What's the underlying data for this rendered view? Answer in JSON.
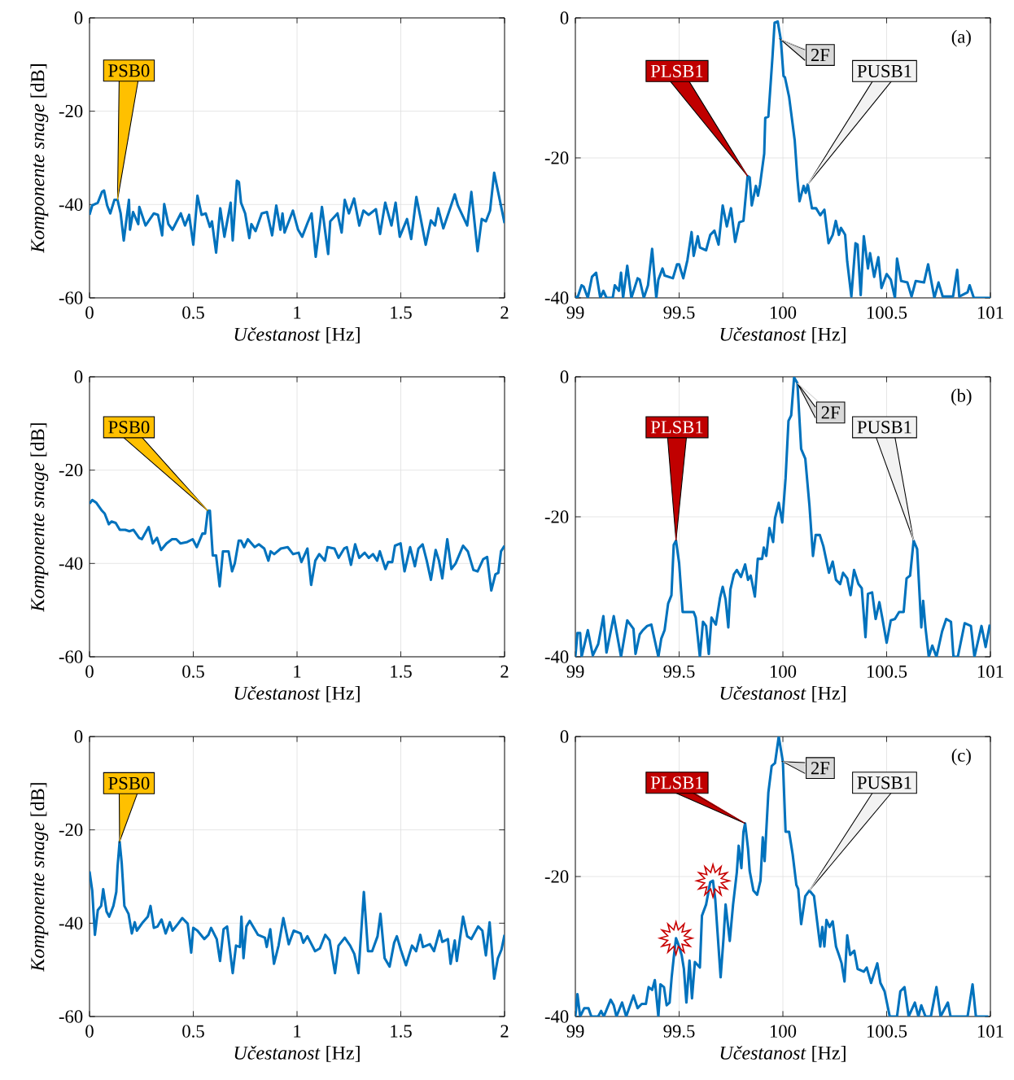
{
  "chart_data": [
    {
      "type": "line",
      "xlabel": "*Učestanost* [Hz]",
      "ylabel": "*Komponente snage* [dB]",
      "grid": true,
      "xlim": [
        0,
        2
      ],
      "ylim": [
        -60,
        0
      ],
      "xticks": [
        0,
        0.5,
        1,
        1.5,
        2
      ],
      "yticks": [
        -60,
        -40,
        -20,
        0
      ],
      "x": [
        0,
        0.013,
        0.04,
        0.06,
        0.07,
        0.085,
        0.1,
        0.12,
        0.135,
        0.15,
        0.165,
        0.19,
        0.195,
        0.21,
        0.235,
        0.24,
        0.27,
        0.31,
        0.33,
        0.35,
        0.36,
        0.38,
        0.4,
        0.44,
        0.46,
        0.48,
        0.5,
        0.52,
        0.54,
        0.56,
        0.58,
        0.59,
        0.61,
        0.63,
        0.65,
        0.68,
        0.69,
        0.71,
        0.72,
        0.73,
        0.75,
        0.77,
        0.78,
        0.8,
        0.83,
        0.855,
        0.88,
        0.9,
        0.92,
        0.93,
        0.94,
        0.98,
        1.005,
        1.025,
        1.05,
        1.07,
        1.09,
        1.11,
        1.12,
        1.15,
        1.16,
        1.195,
        1.215,
        1.23,
        1.25,
        1.275,
        1.3,
        1.32,
        1.345,
        1.38,
        1.4,
        1.425,
        1.455,
        1.475,
        1.495,
        1.53,
        1.55,
        1.575,
        1.595,
        1.62,
        1.645,
        1.665,
        1.68,
        1.705,
        1.74,
        1.76,
        1.775,
        1.82,
        1.84,
        1.87,
        1.89,
        1.91,
        1.93,
        1.95,
        2
      ],
      "series": [
        {
          "color": "#0072bd",
          "values": [
            -42.2,
            -40.2,
            -39.6,
            -37.3,
            -37,
            -40.2,
            -41.9,
            -39,
            -39,
            -41.9,
            -47.7,
            -39,
            -45.4,
            -41.6,
            -44.2,
            -40.5,
            -44.5,
            -41.9,
            -42.2,
            -46.6,
            -39.9,
            -44.2,
            -45.4,
            -41.9,
            -44.5,
            -42.2,
            -48.6,
            -38.1,
            -42.2,
            -41.9,
            -44.8,
            -43.6,
            -50.3,
            -40.8,
            -46.9,
            -39.6,
            -47.7,
            -34.9,
            -35.2,
            -39.6,
            -41.9,
            -47.2,
            -44.2,
            -45.7,
            -41.9,
            -41.6,
            -46.6,
            -40.2,
            -45.4,
            -41.9,
            -46,
            -41.3,
            -45.4,
            -46.9,
            -44,
            -41.9,
            -51.2,
            -44.2,
            -40.5,
            -50.6,
            -43.6,
            -41.9,
            -46,
            -39,
            -41.9,
            -38.7,
            -44.5,
            -41.3,
            -42.2,
            -41,
            -46.3,
            -39.6,
            -44.5,
            -39.6,
            -46.9,
            -43.1,
            -47.4,
            -38.4,
            -42.8,
            -48.6,
            -43.4,
            -44.5,
            -40.8,
            -45.1,
            -40.5,
            -37.8,
            -40.2,
            -44.5,
            -37.3,
            -50,
            -43.1,
            -43.6,
            -41.3,
            -33.2,
            -44
          ]
        }
      ],
      "annotations": [
        {
          "text": "PSB0",
          "x": 0.135,
          "y": -39
        }
      ]
    },
    {
      "type": "line",
      "xlabel": "*Učestanost* [Hz]",
      "grid": true,
      "xlim": [
        99,
        101
      ],
      "ylim": [
        -40,
        0
      ],
      "xticks": [
        99,
        99.5,
        100,
        100.5,
        101
      ],
      "yticks": [
        -40,
        -20,
        0
      ],
      "x": [
        99,
        99.01,
        99.03,
        99.04,
        99.06,
        99.08,
        99.1,
        99.12,
        99.135,
        99.15,
        99.18,
        99.19,
        99.21,
        99.22,
        99.23,
        99.25,
        99.27,
        99.3,
        99.31,
        99.33,
        99.35,
        99.37,
        99.39,
        99.4,
        99.42,
        99.43,
        99.47,
        99.49,
        99.5,
        99.52,
        99.54,
        99.56,
        99.57,
        99.59,
        99.6,
        99.63,
        99.65,
        99.67,
        99.69,
        99.71,
        99.73,
        99.75,
        99.77,
        99.79,
        99.81,
        99.83,
        99.84,
        99.85,
        99.87,
        99.88,
        99.89,
        99.91,
        99.915,
        99.93,
        99.95,
        99.96,
        99.975,
        99.99,
        100.003,
        100.01,
        100.03,
        100.057,
        100.07,
        100.08,
        100.1,
        100.11,
        100.12,
        100.14,
        100.16,
        100.18,
        100.2,
        100.22,
        100.24,
        100.255,
        100.27,
        100.28,
        100.3,
        100.31,
        100.33,
        100.35,
        100.36,
        100.375,
        100.39,
        100.41,
        100.42,
        100.44,
        100.46,
        100.475,
        100.5,
        100.52,
        100.54,
        100.55,
        100.57,
        100.6,
        100.62,
        100.64,
        100.68,
        100.7,
        100.73,
        100.75,
        100.77,
        100.8,
        100.82,
        100.84,
        100.85,
        100.89,
        100.9,
        100.92,
        101
      ],
      "series": [
        {
          "color": "#0072bd",
          "values": [
            -39.8,
            -40,
            -38.2,
            -38.4,
            -40,
            -37,
            -36.4,
            -40,
            -39,
            -40,
            -40,
            -38.2,
            -39,
            -36.4,
            -40,
            -35.4,
            -40,
            -37.2,
            -37.4,
            -40,
            -38.2,
            -33,
            -40,
            -37.4,
            -35.8,
            -36.8,
            -37.2,
            -35.2,
            -35.2,
            -37.2,
            -34.6,
            -30.6,
            -34,
            -31.2,
            -32.8,
            -33.2,
            -31,
            -30.4,
            -32.4,
            -26.8,
            -29.8,
            -27.2,
            -32,
            -29.2,
            -29,
            -22.6,
            -22.8,
            -26.8,
            -24,
            -25.4,
            -23.8,
            -19.4,
            -14.3,
            -14.1,
            -5.5,
            -0.7,
            -0.5,
            -3.1,
            -8.3,
            -8.5,
            -11.3,
            -17.5,
            -23,
            -26.2,
            -24,
            -25,
            -23.8,
            -27.2,
            -27.2,
            -28.2,
            -27.4,
            -32.2,
            -31,
            -29,
            -31,
            -30,
            -31,
            -34.8,
            -39.8,
            -32.2,
            -32.4,
            -39.6,
            -31.2,
            -35.8,
            -33.6,
            -37,
            -34.2,
            -38.6,
            -36.6,
            -37.4,
            -40,
            -34.4,
            -37.6,
            -37.8,
            -39.8,
            -37.6,
            -37.8,
            -35.2,
            -40,
            -37.8,
            -39.8,
            -39.8,
            -39.8,
            -36,
            -39.8,
            -39.2,
            -38.2,
            -40,
            -40
          ]
        }
      ],
      "annotations": [
        {
          "text": "PLSB1",
          "x": 99.83,
          "y": -22.6
        },
        {
          "text": "2F",
          "x": 99.99,
          "y": -3.1
        },
        {
          "text": "PUSB1",
          "x": 100.12,
          "y": -23.8
        },
        "(a)"
      ]
    },
    {
      "type": "line",
      "xlabel": "*Učestanost* [Hz]",
      "ylabel": "*Komponente snage* [dB]",
      "grid": true,
      "xlim": [
        0,
        2
      ],
      "ylim": [
        -60,
        0
      ],
      "xticks": [
        0,
        0.5,
        1,
        1.5,
        2
      ],
      "yticks": [
        -60,
        -40,
        -20,
        0
      ],
      "x": [
        0,
        0.013,
        0.033,
        0.06,
        0.073,
        0.093,
        0.106,
        0.126,
        0.146,
        0.172,
        0.192,
        0.212,
        0.239,
        0.252,
        0.285,
        0.305,
        0.325,
        0.345,
        0.371,
        0.398,
        0.418,
        0.438,
        0.471,
        0.497,
        0.517,
        0.544,
        0.557,
        0.57,
        0.58,
        0.594,
        0.61,
        0.627,
        0.643,
        0.67,
        0.687,
        0.7,
        0.719,
        0.73,
        0.745,
        0.763,
        0.796,
        0.816,
        0.842,
        0.862,
        0.873,
        0.89,
        0.922,
        0.955,
        0.981,
        1.008,
        1.021,
        1.041,
        1.05,
        1.068,
        1.088,
        1.107,
        1.134,
        1.147,
        1.18,
        1.2,
        1.227,
        1.24,
        1.26,
        1.28,
        1.3,
        1.326,
        1.346,
        1.366,
        1.386,
        1.399,
        1.426,
        1.439,
        1.459,
        1.472,
        1.499,
        1.518,
        1.545,
        1.568,
        1.585,
        1.605,
        1.625,
        1.645,
        1.668,
        1.684,
        1.7,
        1.724,
        1.744,
        1.764,
        1.8,
        1.823,
        1.85,
        1.87,
        1.897,
        1.916,
        1.936,
        1.956,
        1.97,
        1.983,
        2
      ],
      "series": [
        {
          "color": "#0072bd",
          "values": [
            -27.2,
            -26.4,
            -27,
            -28.7,
            -29.3,
            -31.6,
            -31,
            -31.3,
            -32.8,
            -32.8,
            -33.1,
            -32.8,
            -34.5,
            -34.8,
            -32.2,
            -35.7,
            -34.5,
            -37.1,
            -35.7,
            -34.8,
            -34.8,
            -35.7,
            -35.4,
            -34.8,
            -36.5,
            -33.6,
            -33.6,
            -28.7,
            -28.7,
            -38.3,
            -38.3,
            -44.9,
            -37.4,
            -37.4,
            -41.7,
            -40,
            -35.1,
            -35.1,
            -36.5,
            -34.8,
            -36.5,
            -35.9,
            -36.8,
            -39.4,
            -37.4,
            -38,
            -36.8,
            -36.5,
            -38,
            -37.7,
            -39.7,
            -37.7,
            -36.8,
            -44.6,
            -39.4,
            -38,
            -39.4,
            -36.5,
            -36.8,
            -38.8,
            -36.8,
            -36.5,
            -40.3,
            -35.9,
            -38.8,
            -37.7,
            -38.8,
            -38,
            -39.4,
            -37.4,
            -41.2,
            -39.7,
            -39.7,
            -36.2,
            -35.7,
            -41.7,
            -36.5,
            -40.6,
            -36.8,
            -35.9,
            -39.4,
            -43.5,
            -37.1,
            -39.4,
            -43.2,
            -34.8,
            -41.2,
            -40,
            -36.2,
            -37.4,
            -41.4,
            -41.7,
            -39.1,
            -38.6,
            -45.8,
            -42.3,
            -42,
            -37.4,
            -36.2
          ]
        }
      ],
      "annotations": [
        {
          "text": "PSB0",
          "x": 0.57,
          "y": -28.7
        }
      ]
    },
    {
      "type": "line",
      "xlabel": "*Učestanost* [Hz]",
      "grid": true,
      "xlim": [
        99,
        101
      ],
      "ylim": [
        -40,
        0
      ],
      "xticks": [
        99,
        99.5,
        100,
        100.5,
        101
      ],
      "yticks": [
        -40,
        -20,
        0
      ],
      "x": [
        99,
        99.01,
        99.023,
        99.03,
        99.043,
        99.06,
        99.084,
        99.11,
        99.135,
        99.15,
        99.185,
        99.22,
        99.25,
        99.28,
        99.29,
        99.31,
        99.325,
        99.346,
        99.366,
        99.4,
        99.414,
        99.43,
        99.447,
        99.463,
        99.474,
        99.485,
        99.5,
        99.517,
        99.542,
        99.57,
        99.58,
        99.6,
        99.615,
        99.63,
        99.643,
        99.656,
        99.677,
        99.697,
        99.71,
        99.724,
        99.737,
        99.747,
        99.764,
        99.778,
        99.798,
        99.818,
        99.832,
        99.845,
        99.865,
        99.879,
        99.9,
        99.908,
        99.92,
        99.935,
        99.953,
        99.962,
        99.98,
        99.997,
        100.013,
        100.027,
        100.04,
        100.054,
        100.07,
        100.088,
        100.108,
        100.128,
        100.145,
        100.158,
        100.178,
        100.195,
        100.222,
        100.24,
        100.256,
        100.276,
        100.29,
        100.31,
        100.326,
        100.343,
        100.364,
        100.38,
        100.398,
        100.41,
        100.43,
        100.447,
        100.465,
        100.48,
        100.5,
        100.52,
        100.54,
        100.56,
        100.582,
        100.596,
        100.613,
        100.63,
        100.647,
        100.667,
        100.676,
        100.687,
        100.703,
        100.72,
        100.74,
        100.767,
        100.787,
        100.81,
        100.822,
        100.843,
        100.876,
        100.906,
        100.923,
        100.957,
        100.977,
        100.997
      ],
      "series": [
        {
          "color": "#0072bd",
          "values": [
            -40,
            -36.6,
            -36.6,
            -40,
            -38.4,
            -36.2,
            -39.8,
            -38.2,
            -34.2,
            -39.4,
            -34.2,
            -40,
            -34.8,
            -36,
            -39.6,
            -36.8,
            -36.2,
            -35.6,
            -35.4,
            -40,
            -37.4,
            -36.2,
            -32.4,
            -31.2,
            -24,
            -23.4,
            -26.6,
            -33.6,
            -33.6,
            -33.6,
            -34.4,
            -40,
            -35,
            -35.6,
            -39.6,
            -34.4,
            -35.4,
            -31.6,
            -30,
            -31.8,
            -35.8,
            -30.4,
            -28.2,
            -27.6,
            -28.6,
            -26.8,
            -29,
            -28.4,
            -31.4,
            -26,
            -26,
            -24.4,
            -25.6,
            -21.6,
            -23.6,
            -20.2,
            -18,
            -20.8,
            -14.5,
            -6.3,
            -5.5,
            -0.1,
            -0.9,
            -10.3,
            -11.7,
            -18.4,
            -25.6,
            -22.6,
            -22.6,
            -24.2,
            -28,
            -26.4,
            -29,
            -29.6,
            -28,
            -28.8,
            -31.2,
            -27.6,
            -29.6,
            -30.2,
            -37.2,
            -31,
            -30.8,
            -34.6,
            -32.2,
            -34.6,
            -38,
            -34.8,
            -34.6,
            -33.6,
            -33.6,
            -28.8,
            -28.4,
            -23.4,
            -24.6,
            -35.8,
            -32,
            -35.8,
            -40,
            -38.4,
            -40,
            -36.4,
            -34.6,
            -35,
            -40,
            -40,
            -35.2,
            -35.6,
            -40,
            -35.6,
            -38.6,
            -35.4
          ]
        }
      ],
      "annotations": [
        {
          "text": "PLSB1",
          "x": 99.485,
          "y": -23.4
        },
        {
          "text": "2F",
          "x": 100.07,
          "y": -0.9
        },
        {
          "text": "PUSB1",
          "x": 100.63,
          "y": -23.4
        },
        "(b)"
      ]
    },
    {
      "type": "line",
      "xlabel": "*Učestanost* [Hz]",
      "ylabel": "*Komponente snage* [dB]",
      "grid": true,
      "xlim": [
        0,
        2
      ],
      "ylim": [
        -60,
        0
      ],
      "xticks": [
        0,
        0.5,
        1,
        1.5,
        2
      ],
      "yticks": [
        -60,
        -40,
        -20,
        0
      ],
      "x": [
        0,
        0.013,
        0.026,
        0.04,
        0.056,
        0.066,
        0.082,
        0.095,
        0.115,
        0.129,
        0.135,
        0.145,
        0.155,
        0.168,
        0.188,
        0.204,
        0.218,
        0.228,
        0.257,
        0.281,
        0.294,
        0.31,
        0.328,
        0.347,
        0.367,
        0.387,
        0.4,
        0.427,
        0.447,
        0.473,
        0.49,
        0.5,
        0.52,
        0.553,
        0.573,
        0.586,
        0.613,
        0.629,
        0.646,
        0.663,
        0.69,
        0.706,
        0.725,
        0.732,
        0.742,
        0.756,
        0.772,
        0.812,
        0.845,
        0.854,
        0.871,
        0.889,
        0.911,
        0.934,
        0.96,
        0.984,
        1.017,
        1.03,
        1.05,
        1.087,
        1.11,
        1.136,
        1.157,
        1.183,
        1.2,
        1.23,
        1.256,
        1.276,
        1.296,
        1.322,
        1.342,
        1.362,
        1.388,
        1.402,
        1.422,
        1.446,
        1.468,
        1.481,
        1.5,
        1.525,
        1.554,
        1.574,
        1.594,
        1.607,
        1.64,
        1.66,
        1.687,
        1.7,
        1.727,
        1.74,
        1.76,
        1.77,
        1.8,
        1.82,
        1.84,
        1.873,
        1.893,
        1.91,
        1.928,
        1.95,
        1.968,
        1.985,
        2
      ],
      "series": [
        {
          "color": "#0072bd",
          "values": [
            -28.9,
            -33,
            -42.5,
            -37.2,
            -36.3,
            -32.7,
            -37.5,
            -38.6,
            -36.3,
            -33.3,
            -28,
            -22.5,
            -27,
            -36.3,
            -38,
            -42.2,
            -39.8,
            -41.6,
            -39.8,
            -38.6,
            -36.3,
            -41,
            -40.7,
            -39.2,
            -42.2,
            -39.8,
            -41.6,
            -40.1,
            -38.9,
            -40.1,
            -46.3,
            -41,
            -41.6,
            -43.4,
            -42.5,
            -41,
            -43.4,
            -48.1,
            -41.3,
            -40.7,
            -50.7,
            -44.8,
            -45.1,
            -38.6,
            -47.5,
            -40.7,
            -39.5,
            -42.5,
            -43.1,
            -45.1,
            -41.3,
            -48.7,
            -44.8,
            -38.9,
            -44.5,
            -41.6,
            -42.2,
            -44.2,
            -42.8,
            -46,
            -45.4,
            -42.5,
            -43.7,
            -50.7,
            -44.8,
            -43.1,
            -44.8,
            -46.6,
            -50.7,
            -33.3,
            -46,
            -46,
            -42.8,
            -38,
            -47.5,
            -49.3,
            -44.2,
            -42.8,
            -45.7,
            -49,
            -44.8,
            -46,
            -42.5,
            -45.1,
            -44.5,
            -46,
            -41.6,
            -44,
            -43.4,
            -48.7,
            -43.7,
            -48.1,
            -38.6,
            -42.8,
            -43.4,
            -40.7,
            -41.6,
            -46.9,
            -39.8,
            -51.9,
            -47.5,
            -45.7,
            -42.5
          ]
        }
      ],
      "annotations": [
        {
          "text": "PSB0",
          "x": 0.145,
          "y": -22.5
        }
      ]
    },
    {
      "type": "line",
      "xlabel": "*Učestanost* [Hz]",
      "grid": true,
      "xlim": [
        99,
        101
      ],
      "ylim": [
        -40,
        0
      ],
      "xticks": [
        99,
        99.5,
        100,
        100.5,
        101
      ],
      "yticks": [
        -40,
        -20,
        0
      ],
      "x": [
        99,
        99.01,
        99.023,
        99.043,
        99.063,
        99.077,
        99.11,
        99.124,
        99.137,
        99.17,
        99.185,
        99.198,
        99.225,
        99.245,
        99.28,
        99.3,
        99.32,
        99.34,
        99.353,
        99.37,
        99.383,
        99.4,
        99.41,
        99.427,
        99.44,
        99.454,
        99.464,
        99.474,
        99.485,
        99.5,
        99.512,
        99.523,
        99.535,
        99.55,
        99.562,
        99.576,
        99.6,
        99.61,
        99.63,
        99.65,
        99.663,
        99.674,
        99.687,
        99.7,
        99.714,
        99.724,
        99.744,
        99.76,
        99.778,
        99.787,
        99.8,
        99.81,
        99.818,
        99.832,
        99.84,
        99.858,
        99.876,
        99.892,
        99.903,
        99.912,
        99.93,
        99.946,
        99.962,
        99.98,
        100,
        100.013,
        100.03,
        100.047,
        100.065,
        100.074,
        100.088,
        100.108,
        100.128,
        100.15,
        100.165,
        100.18,
        100.19,
        100.2,
        100.21,
        100.225,
        100.24,
        100.256,
        100.27,
        100.283,
        100.297,
        100.31,
        100.324,
        100.344,
        100.36,
        100.39,
        100.404,
        100.425,
        100.455,
        100.47,
        100.49,
        100.515,
        100.55,
        100.566,
        100.586,
        100.606,
        100.636,
        100.653,
        100.667,
        100.687,
        100.713,
        100.74,
        100.76,
        100.795,
        100.808,
        100.89,
        100.914,
        100.93,
        100.964,
        100.99
      ],
      "series": [
        {
          "color": "#0072bd",
          "values": [
            -40,
            -36.8,
            -40,
            -38.8,
            -38.8,
            -40,
            -40,
            -39.2,
            -40,
            -37.6,
            -38.4,
            -40,
            -38,
            -40,
            -37,
            -38.8,
            -38.2,
            -38.2,
            -35.8,
            -36.2,
            -34.8,
            -40,
            -35.4,
            -35.8,
            -38.4,
            -38,
            -34.4,
            -31.6,
            -28.8,
            -30,
            -31.2,
            -33.2,
            -38,
            -32,
            -37.4,
            -32.2,
            -33,
            -25.6,
            -24,
            -20.8,
            -20.6,
            -23.2,
            -28.8,
            -34.4,
            -28.8,
            -24,
            -29.2,
            -24,
            -19.4,
            -15.6,
            -18.8,
            -13.6,
            -12.4,
            -16,
            -19.2,
            -22,
            -22.6,
            -20.6,
            -14.4,
            -17.8,
            -8,
            -4.2,
            -3.8,
            0,
            -3.6,
            -13.6,
            -13.6,
            -16.8,
            -21.2,
            -21.8,
            -26.8,
            -22.8,
            -22,
            -22.8,
            -26.4,
            -30,
            -27.2,
            -30,
            -26.2,
            -27.2,
            -26.4,
            -30,
            -31.2,
            -32.4,
            -35,
            -28.4,
            -31.2,
            -30.6,
            -33.2,
            -33.6,
            -33,
            -35.2,
            -32.4,
            -35.2,
            -36.4,
            -40,
            -40,
            -36.4,
            -35.8,
            -40,
            -38,
            -40,
            -38.4,
            -40,
            -40,
            -35.8,
            -40,
            -38,
            -40,
            -40,
            -35.4,
            -40,
            -40,
            -40
          ]
        }
      ],
      "annotations": [
        {
          "text": "PLSB1",
          "x": 99.818,
          "y": -12.4
        },
        {
          "text": "2F",
          "x": 100,
          "y": -3.6
        },
        {
          "text": "PUSB1",
          "x": 100.128,
          "y": -22
        },
        "(c)"
      ]
    }
  ]
}
